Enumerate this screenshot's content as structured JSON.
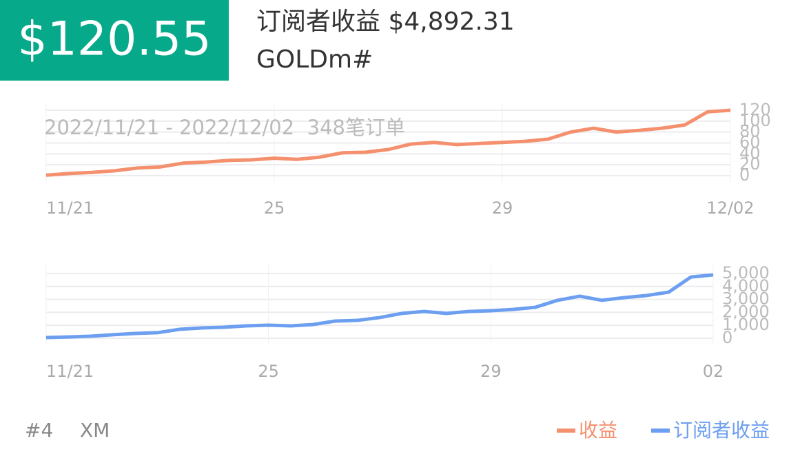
{
  "header": {
    "price": "$120.55",
    "title": "订阅者收益 $4,892.31",
    "symbol": "GOLDm#"
  },
  "chart_data": [
    {
      "type": "line",
      "subtitle": "2022/11/21 - 2022/12/02  348笔订单",
      "categories": [
        "11/21",
        null,
        null,
        null,
        null,
        null,
        null,
        null,
        null,
        null,
        "25",
        null,
        null,
        null,
        null,
        null,
        null,
        null,
        null,
        null,
        "29",
        null,
        null,
        null,
        null,
        null,
        null,
        null,
        null,
        null,
        "12/02"
      ],
      "series": [
        {
          "name": "收益",
          "color": "#f4906e",
          "values": [
            1,
            4,
            6,
            9,
            14,
            16,
            23,
            25,
            28,
            29,
            32,
            30,
            34,
            42,
            43,
            48,
            58,
            61,
            57,
            59,
            61,
            63,
            67,
            80,
            87,
            80,
            83,
            87,
            93,
            117,
            120
          ]
        }
      ],
      "ylim": [
        0,
        120
      ],
      "yticks": [
        0,
        20,
        40,
        60,
        80,
        100,
        120
      ],
      "grid": true
    },
    {
      "type": "line",
      "categories": [
        "11/21",
        null,
        null,
        null,
        null,
        null,
        null,
        null,
        null,
        null,
        "25",
        null,
        null,
        null,
        null,
        null,
        null,
        null,
        null,
        null,
        "29",
        null,
        null,
        null,
        null,
        null,
        null,
        null,
        null,
        null,
        "02"
      ],
      "series": [
        {
          "name": "订阅者收益",
          "color": "#6d9ff0",
          "values": [
            50,
            100,
            160,
            270,
            370,
            430,
            690,
            800,
            850,
            960,
            1010,
            960,
            1060,
            1330,
            1380,
            1600,
            1920,
            2070,
            1920,
            2070,
            2130,
            2230,
            2390,
            2930,
            3250,
            2930,
            3140,
            3300,
            3560,
            4730,
            4890
          ]
        }
      ],
      "ylim": [
        0,
        5000
      ],
      "yticks": [
        0,
        {
          "value": 1000,
          "label": "1,000"
        },
        {
          "value": 2000,
          "label": "2,000"
        },
        {
          "value": 3000,
          "label": "3,000"
        },
        {
          "value": 4000,
          "label": "4,000"
        },
        {
          "value": 5000,
          "label": "5,000"
        }
      ],
      "grid": true
    }
  ],
  "footer": {
    "items": [
      "#4",
      "XM"
    ]
  }
}
